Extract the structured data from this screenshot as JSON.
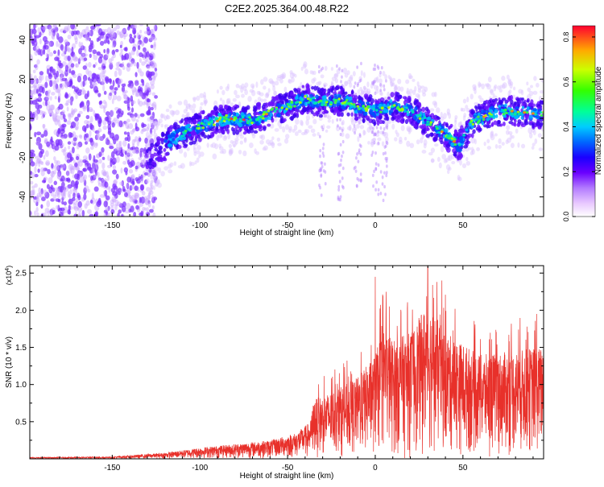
{
  "title": "C2E2.2025.364.00.48.R22",
  "chart_data": [
    {
      "type": "heatmap",
      "xlabel": "Height of straight line (km)",
      "ylabel": "Frequency (Hz)",
      "xlim": [
        -197,
        96
      ],
      "ylim": [
        -50,
        48
      ],
      "x_ticks": [
        -150,
        -100,
        -50,
        0,
        50
      ],
      "y_ticks": [
        -40,
        -20,
        0,
        20,
        40
      ],
      "colorbar": {
        "label": "Normalized spectral amplitude",
        "range": [
          0,
          0.85
        ],
        "ticks": [
          "0.0",
          "0.2",
          "0.4",
          "0.6",
          "0.8"
        ]
      },
      "ridge": [
        {
          "x": -125,
          "y": -18
        },
        {
          "x": -115,
          "y": -10
        },
        {
          "x": -100,
          "y": -4
        },
        {
          "x": -85,
          "y": 0
        },
        {
          "x": -70,
          "y": -1
        },
        {
          "x": -60,
          "y": 3
        },
        {
          "x": -50,
          "y": 6
        },
        {
          "x": -40,
          "y": 10
        },
        {
          "x": -30,
          "y": 8
        },
        {
          "x": -20,
          "y": 9
        },
        {
          "x": -10,
          "y": 6
        },
        {
          "x": 0,
          "y": 4
        },
        {
          "x": 10,
          "y": 6
        },
        {
          "x": 20,
          "y": 4
        },
        {
          "x": 30,
          "y": -2
        },
        {
          "x": 40,
          "y": -8
        },
        {
          "x": 48,
          "y": -14
        },
        {
          "x": 55,
          "y": -2
        },
        {
          "x": 65,
          "y": 2
        },
        {
          "x": 75,
          "y": 4
        },
        {
          "x": 85,
          "y": 3
        },
        {
          "x": 95,
          "y": 2
        }
      ]
    },
    {
      "type": "area",
      "xlabel": "Height of straight line (km)",
      "ylabel": "SNR (10 * v/v)",
      "y_multiplier": "(x10",
      "y_exponent": "4",
      "xlim": [
        -197,
        96
      ],
      "ylim": [
        0,
        26000
      ],
      "x_ticks": [
        -150,
        -100,
        -50,
        0,
        50
      ],
      "y_ticks": [
        5000,
        10000,
        15000,
        20000,
        25000
      ],
      "y_tick_labels": [
        "0.5",
        "1.0",
        "1.5",
        "2.0",
        "2.5"
      ],
      "color": "#e8302a",
      "envelope": [
        {
          "x": -197,
          "y": 200
        },
        {
          "x": -150,
          "y": 300
        },
        {
          "x": -120,
          "y": 800
        },
        {
          "x": -100,
          "y": 1500
        },
        {
          "x": -80,
          "y": 2000
        },
        {
          "x": -60,
          "y": 2500
        },
        {
          "x": -45,
          "y": 3500
        },
        {
          "x": -37,
          "y": 5000
        },
        {
          "x": -35,
          "y": 8000
        },
        {
          "x": -25,
          "y": 9000
        },
        {
          "x": -10,
          "y": 11000
        },
        {
          "x": 0,
          "y": 14000
        },
        {
          "x": 5,
          "y": 18000
        },
        {
          "x": 10,
          "y": 16000
        },
        {
          "x": 20,
          "y": 17000
        },
        {
          "x": 30,
          "y": 21000
        },
        {
          "x": 40,
          "y": 17000
        },
        {
          "x": 60,
          "y": 14000
        },
        {
          "x": 80,
          "y": 14500
        },
        {
          "x": 90,
          "y": 15000
        },
        {
          "x": 96,
          "y": 15000
        }
      ],
      "peaks": [
        {
          "x": 0,
          "y": 24500
        },
        {
          "x": 8,
          "y": 20500
        },
        {
          "x": 30,
          "y": 26000
        },
        {
          "x": 38,
          "y": 24000
        },
        {
          "x": 92,
          "y": 19500
        }
      ]
    }
  ]
}
